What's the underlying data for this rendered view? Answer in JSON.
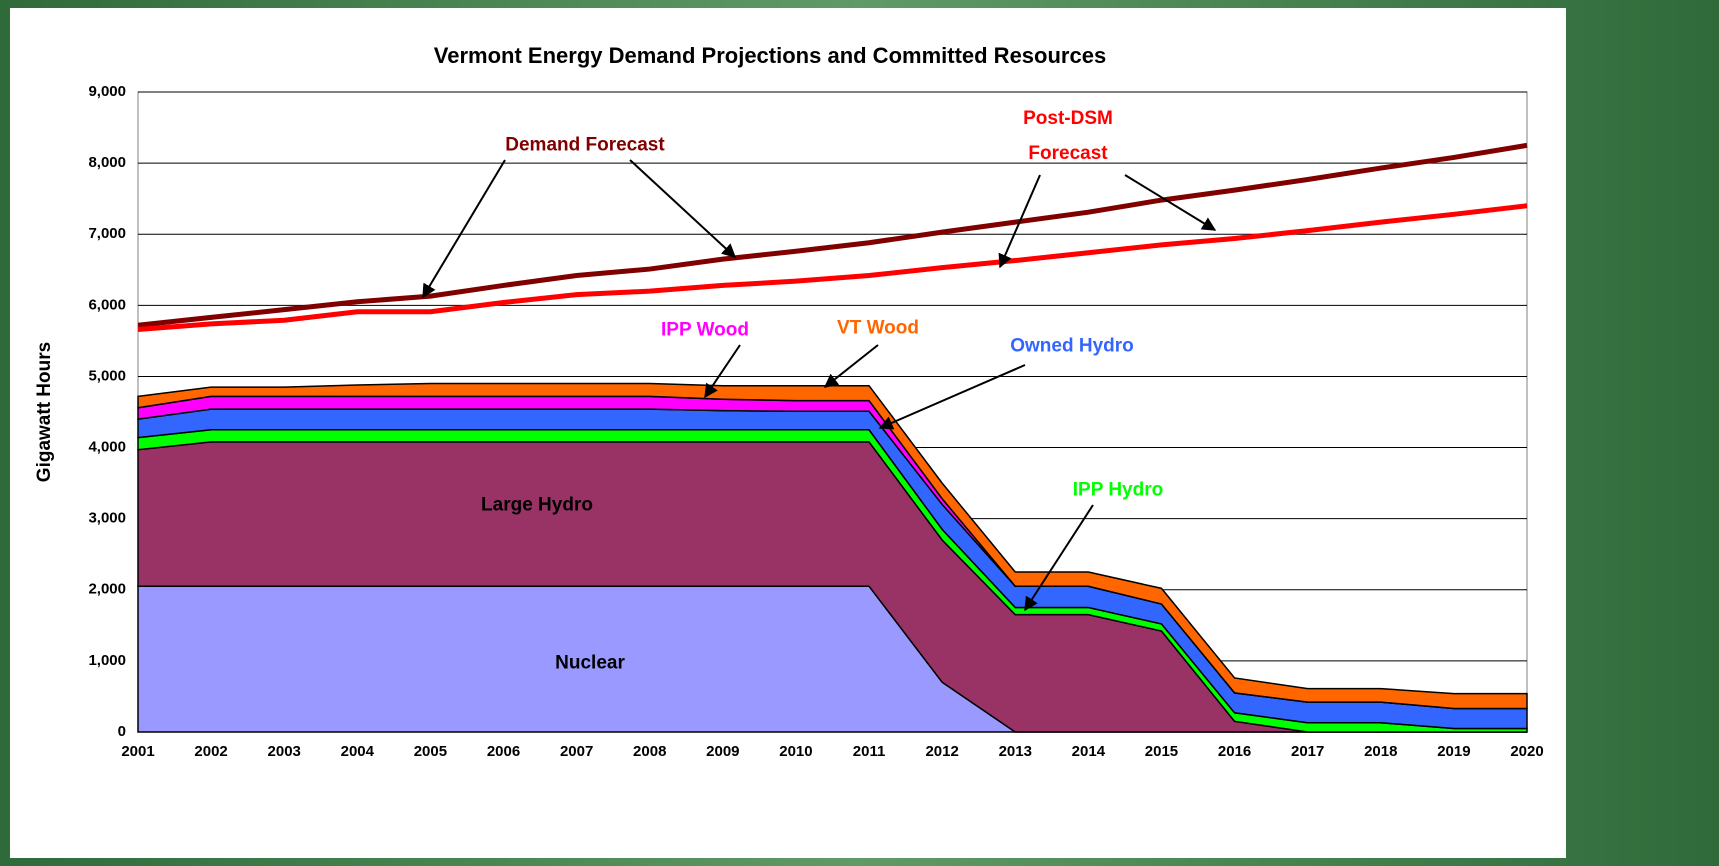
{
  "chart_data": {
    "type": "stacked_area_line",
    "title": "Vermont Energy Demand Projections and Committed Resources",
    "y_label": "Gigawatt Hours",
    "categories": [
      "2001",
      "2002",
      "2003",
      "2004",
      "2005",
      "2006",
      "2007",
      "2008",
      "2009",
      "2010",
      "2011",
      "2012",
      "2013",
      "2014",
      "2015",
      "2016",
      "2017",
      "2018",
      "2019",
      "2020"
    ],
    "ylim": [
      0,
      9000
    ],
    "yticks": [
      0,
      {
        "value": 1000,
        "label": "1,000"
      },
      {
        "value": 2000,
        "label": "2,000"
      },
      {
        "value": 3000,
        "label": "3,000"
      },
      {
        "value": 4000,
        "label": "4,000"
      },
      {
        "value": 5000,
        "label": "5,000"
      },
      {
        "value": 6000,
        "label": "6,000"
      },
      {
        "value": 7000,
        "label": "7,000"
      },
      {
        "value": 8000,
        "label": "8,000"
      },
      {
        "value": 9000,
        "label": "9,000"
      }
    ],
    "grid": true,
    "series": [
      {
        "name": "Nuclear",
        "kind": "area",
        "color": "#9999ff",
        "values": [
          2050,
          2050,
          2050,
          2050,
          2050,
          2050,
          2050,
          2050,
          2050,
          2050,
          2050,
          700,
          0,
          0,
          0,
          0,
          0,
          0,
          0,
          0
        ]
      },
      {
        "name": "Large Hydro",
        "kind": "area",
        "color": "#993366",
        "values": [
          1920,
          2030,
          2030,
          2030,
          2030,
          2030,
          2030,
          2030,
          2030,
          2030,
          2030,
          2000,
          1650,
          1650,
          1420,
          150,
          0,
          0,
          0,
          0
        ]
      },
      {
        "name": "IPP Hydro",
        "kind": "area",
        "color": "#00ff00",
        "values": [
          170,
          170,
          170,
          170,
          170,
          170,
          170,
          170,
          170,
          170,
          170,
          150,
          100,
          100,
          100,
          120,
          130,
          130,
          50,
          50
        ]
      },
      {
        "name": "Owned Hydro",
        "kind": "area",
        "color": "#3366ff",
        "values": [
          260,
          290,
          290,
          290,
          290,
          290,
          290,
          290,
          270,
          260,
          260,
          350,
          300,
          300,
          280,
          280,
          290,
          290,
          280,
          280
        ]
      },
      {
        "name": "IPP Wood",
        "kind": "area",
        "color": "#ff00ff",
        "values": [
          160,
          180,
          180,
          180,
          180,
          180,
          180,
          180,
          160,
          150,
          150,
          80,
          0,
          0,
          0,
          0,
          0,
          0,
          0,
          0
        ]
      },
      {
        "name": "VT Wood",
        "kind": "area",
        "color": "#ff6600",
        "values": [
          160,
          130,
          130,
          160,
          180,
          180,
          180,
          180,
          190,
          210,
          210,
          220,
          200,
          200,
          220,
          210,
          190,
          190,
          210,
          210
        ]
      },
      {
        "name": "Demand Forecast",
        "kind": "line",
        "color": "#800000",
        "values": [
          5720,
          5830,
          5940,
          6050,
          6130,
          6280,
          6420,
          6510,
          6650,
          6760,
          6880,
          7030,
          7170,
          7310,
          7480,
          7620,
          7770,
          7930,
          8080,
          8250
        ]
      },
      {
        "name": "Post-DSM Forecast",
        "kind": "line",
        "color": "#ff0000",
        "values": [
          5660,
          5740,
          5790,
          5910,
          5910,
          6040,
          6150,
          6200,
          6280,
          6340,
          6420,
          6530,
          6630,
          6740,
          6850,
          6940,
          7050,
          7170,
          7280,
          7400
        ]
      }
    ]
  }
}
